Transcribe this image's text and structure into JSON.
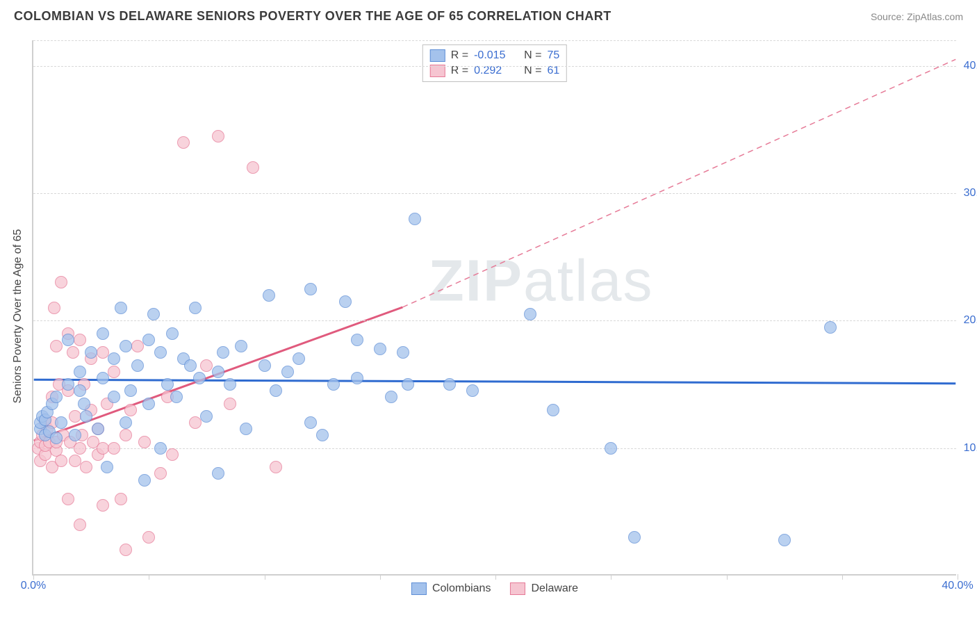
{
  "title": "COLOMBIAN VS DELAWARE SENIORS POVERTY OVER THE AGE OF 65 CORRELATION CHART",
  "source_label": "Source: ZipAtlas.com",
  "y_axis_label": "Seniors Poverty Over the Age of 65",
  "watermark_a": "ZIP",
  "watermark_b": "atlas",
  "chart": {
    "type": "scatter",
    "xlim": [
      0,
      40
    ],
    "ylim": [
      0,
      42
    ],
    "x_ticks": [
      0,
      5,
      10,
      15,
      20,
      25,
      30,
      35,
      40
    ],
    "x_tick_labels": {
      "0": "0.0%",
      "40": "40.0%"
    },
    "y_ticks": [
      10,
      20,
      30,
      40
    ],
    "y_tick_labels": {
      "10": "10.0%",
      "20": "20.0%",
      "30": "30.0%",
      "40": "40.0%"
    },
    "grid_color": "#d8d8d8",
    "axis_color": "#cfcfcf",
    "background_color": "#ffffff",
    "tick_text_color": "#3a6dd0",
    "label_color": "#444444",
    "label_fontsize": 16,
    "title_fontsize": 18,
    "marker_size": 18
  },
  "series": {
    "blue": {
      "label": "Colombians",
      "color_fill": "#a4c2ec",
      "color_border": "#5f8fd6",
      "R": "-0.015",
      "N": "75",
      "trend": {
        "y_at_x0": 15.3,
        "y_at_x40": 15.0,
        "width": 3,
        "dash": "none",
        "color": "#2f6bd0"
      },
      "points": [
        [
          0.3,
          11.5
        ],
        [
          0.3,
          12.0
        ],
        [
          0.4,
          12.5
        ],
        [
          0.5,
          11.0
        ],
        [
          0.5,
          12.2
        ],
        [
          0.6,
          12.8
        ],
        [
          0.7,
          11.3
        ],
        [
          0.8,
          13.5
        ],
        [
          1.0,
          10.8
        ],
        [
          1.0,
          14.0
        ],
        [
          1.2,
          12.0
        ],
        [
          1.5,
          15.0
        ],
        [
          1.5,
          18.5
        ],
        [
          1.8,
          11.0
        ],
        [
          2.0,
          16.0
        ],
        [
          2.0,
          14.5
        ],
        [
          2.2,
          13.5
        ],
        [
          2.3,
          12.5
        ],
        [
          2.5,
          17.5
        ],
        [
          2.8,
          11.5
        ],
        [
          3.0,
          15.5
        ],
        [
          3.0,
          19.0
        ],
        [
          3.2,
          8.5
        ],
        [
          3.5,
          17.0
        ],
        [
          3.5,
          14.0
        ],
        [
          3.8,
          21.0
        ],
        [
          4.0,
          12.0
        ],
        [
          4.0,
          18.0
        ],
        [
          4.2,
          14.5
        ],
        [
          4.5,
          16.5
        ],
        [
          4.8,
          7.5
        ],
        [
          5.0,
          13.5
        ],
        [
          5.0,
          18.5
        ],
        [
          5.2,
          20.5
        ],
        [
          5.5,
          10.0
        ],
        [
          5.5,
          17.5
        ],
        [
          5.8,
          15.0
        ],
        [
          6.0,
          19.0
        ],
        [
          6.2,
          14.0
        ],
        [
          6.5,
          17.0
        ],
        [
          6.8,
          16.5
        ],
        [
          7.0,
          21.0
        ],
        [
          7.2,
          15.5
        ],
        [
          7.5,
          12.5
        ],
        [
          8.0,
          8.0
        ],
        [
          8.0,
          16.0
        ],
        [
          8.2,
          17.5
        ],
        [
          8.5,
          15.0
        ],
        [
          9.0,
          18.0
        ],
        [
          9.2,
          11.5
        ],
        [
          10.0,
          16.5
        ],
        [
          10.2,
          22.0
        ],
        [
          10.5,
          14.5
        ],
        [
          11.0,
          16.0
        ],
        [
          11.5,
          17.0
        ],
        [
          12.0,
          22.5
        ],
        [
          12.0,
          12.0
        ],
        [
          12.5,
          11.0
        ],
        [
          13.0,
          15.0
        ],
        [
          13.5,
          21.5
        ],
        [
          14.0,
          18.5
        ],
        [
          14.0,
          15.5
        ],
        [
          15.0,
          17.8
        ],
        [
          15.5,
          14.0
        ],
        [
          16.0,
          17.5
        ],
        [
          16.2,
          15.0
        ],
        [
          16.5,
          28.0
        ],
        [
          18.0,
          15.0
        ],
        [
          19.0,
          14.5
        ],
        [
          21.5,
          20.5
        ],
        [
          22.5,
          13.0
        ],
        [
          25.0,
          10.0
        ],
        [
          26.0,
          3.0
        ],
        [
          32.5,
          2.8
        ],
        [
          34.5,
          19.5
        ]
      ]
    },
    "pink": {
      "label": "Delaware",
      "color_fill": "#f6c5d1",
      "color_border": "#e67a97",
      "R": "0.292",
      "N": "61",
      "trend": {
        "solid": {
          "x0": 0,
          "y0": 10.5,
          "x1": 16,
          "y1": 21.0,
          "width": 3,
          "color": "#e05a7d"
        },
        "dashed": {
          "x0": 16,
          "y0": 21.0,
          "x1": 40,
          "y1": 40.5,
          "width": 1.5,
          "color": "#e67a97"
        }
      },
      "points": [
        [
          0.2,
          10.0
        ],
        [
          0.3,
          9.0
        ],
        [
          0.3,
          10.5
        ],
        [
          0.4,
          11.0
        ],
        [
          0.5,
          9.5
        ],
        [
          0.5,
          10.2
        ],
        [
          0.5,
          12.0
        ],
        [
          0.6,
          11.5
        ],
        [
          0.7,
          10.5
        ],
        [
          0.8,
          8.5
        ],
        [
          0.8,
          12.0
        ],
        [
          0.8,
          14.0
        ],
        [
          0.9,
          21.0
        ],
        [
          1.0,
          18.0
        ],
        [
          1.0,
          9.8
        ],
        [
          1.0,
          10.5
        ],
        [
          1.1,
          15.0
        ],
        [
          1.2,
          23.0
        ],
        [
          1.2,
          9.0
        ],
        [
          1.3,
          11.0
        ],
        [
          1.5,
          14.5
        ],
        [
          1.5,
          19.0
        ],
        [
          1.5,
          6.0
        ],
        [
          1.6,
          10.5
        ],
        [
          1.7,
          17.5
        ],
        [
          1.8,
          9.0
        ],
        [
          1.8,
          12.5
        ],
        [
          2.0,
          10.0
        ],
        [
          2.0,
          18.5
        ],
        [
          2.0,
          4.0
        ],
        [
          2.1,
          11.0
        ],
        [
          2.2,
          15.0
        ],
        [
          2.3,
          8.5
        ],
        [
          2.5,
          13.0
        ],
        [
          2.5,
          17.0
        ],
        [
          2.6,
          10.5
        ],
        [
          2.8,
          9.5
        ],
        [
          2.8,
          11.5
        ],
        [
          3.0,
          5.5
        ],
        [
          3.0,
          10.0
        ],
        [
          3.0,
          17.5
        ],
        [
          3.2,
          13.5
        ],
        [
          3.5,
          10.0
        ],
        [
          3.5,
          16.0
        ],
        [
          3.8,
          6.0
        ],
        [
          4.0,
          2.0
        ],
        [
          4.0,
          11.0
        ],
        [
          4.2,
          13.0
        ],
        [
          4.5,
          18.0
        ],
        [
          4.8,
          10.5
        ],
        [
          5.0,
          3.0
        ],
        [
          5.5,
          8.0
        ],
        [
          5.8,
          14.0
        ],
        [
          6.0,
          9.5
        ],
        [
          6.5,
          34.0
        ],
        [
          7.0,
          12.0
        ],
        [
          7.5,
          16.5
        ],
        [
          8.0,
          34.5
        ],
        [
          8.5,
          13.5
        ],
        [
          9.5,
          32.0
        ],
        [
          10.5,
          8.5
        ]
      ]
    }
  },
  "legend_top": [
    {
      "swatch": "blue",
      "r_label": "R =",
      "r": "-0.015",
      "n_label": "N =",
      "n": "75"
    },
    {
      "swatch": "pink",
      "r_label": "R =",
      "r": "0.292",
      "n_label": "N =",
      "n": "61"
    }
  ],
  "legend_bottom": [
    {
      "swatch": "blue",
      "label": "Colombians"
    },
    {
      "swatch": "pink",
      "label": "Delaware"
    }
  ]
}
